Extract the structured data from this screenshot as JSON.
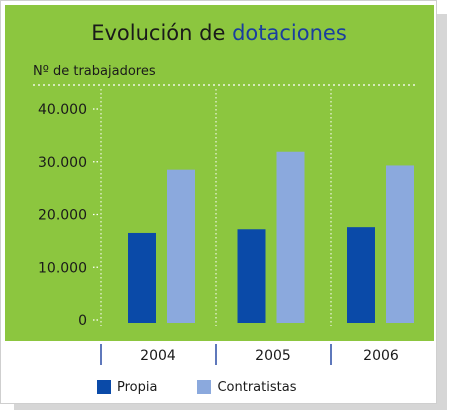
{
  "chart_data": {
    "type": "bar",
    "title_part1": "Evolución de",
    "title_part2": "dotaciones",
    "ylabel": "Nº de trabajadores",
    "categories": [
      "2004",
      "2005",
      "2006"
    ],
    "yticks": [
      "0",
      "10.000",
      "20.000",
      "30.000",
      "40.000"
    ],
    "ylim": [
      0,
      40000
    ],
    "series": [
      {
        "name": "Propia",
        "color": "#0a4aa8",
        "values": [
          16500,
          17200,
          17600
        ]
      },
      {
        "name": "Contratistas",
        "color": "#8ba9dd",
        "values": [
          28500,
          31900,
          29300
        ]
      }
    ],
    "legend_position": "bottom-left",
    "grid": true
  },
  "colors": {
    "title_accent": "#1a3e9e",
    "title_main": "#1a1a1a",
    "panel": "#8cc63f"
  }
}
